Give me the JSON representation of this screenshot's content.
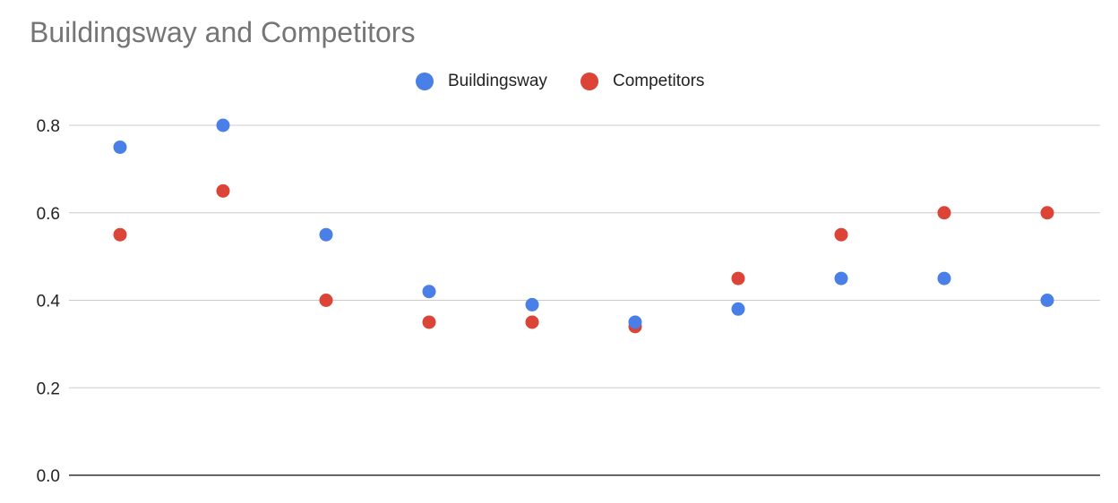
{
  "chart_data": {
    "type": "scatter",
    "title": "Buildingsway and Competitors",
    "xlabel": "",
    "ylabel": "",
    "ylim": [
      0,
      0.8
    ],
    "yticks": [
      "0.0",
      "0.2",
      "0.4",
      "0.6",
      "0.8"
    ],
    "ytick_values": [
      0,
      0.2,
      0.4,
      0.6,
      0.8
    ],
    "grid": true,
    "legend_position": "top",
    "x": [
      1,
      2,
      3,
      4,
      5,
      6,
      7,
      8,
      9,
      10
    ],
    "series": [
      {
        "name": "Buildingsway",
        "color": "#4a7fe8",
        "values": [
          0.75,
          0.8,
          0.55,
          0.42,
          0.39,
          0.35,
          0.38,
          0.45,
          0.45,
          0.4
        ]
      },
      {
        "name": "Competitors",
        "color": "#db4437",
        "values": [
          0.55,
          0.65,
          0.4,
          0.35,
          0.35,
          0.34,
          0.45,
          0.55,
          0.6,
          0.6
        ]
      }
    ]
  }
}
